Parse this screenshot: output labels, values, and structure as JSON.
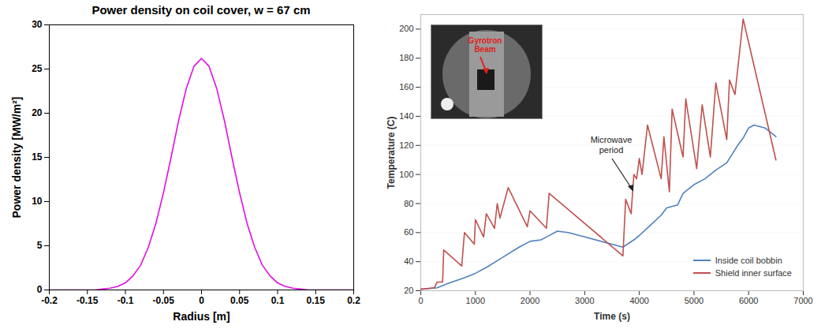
{
  "chart_data": [
    {
      "type": "line",
      "title": "Power density on coil cover, w = 67 cm",
      "xlabel": "Radius [m]",
      "ylabel": "Power density [MW/m²]",
      "x": [
        -0.2,
        -0.19,
        -0.18,
        -0.17,
        -0.16,
        -0.15,
        -0.14,
        -0.13,
        -0.12,
        -0.11,
        -0.1,
        -0.09,
        -0.08,
        -0.07,
        -0.06,
        -0.05,
        -0.04,
        -0.03,
        -0.02,
        -0.01,
        0,
        0.01,
        0.02,
        0.03,
        0.04,
        0.05,
        0.06,
        0.07,
        0.08,
        0.09,
        0.1,
        0.11,
        0.12,
        0.13,
        0.14,
        0.15,
        0.16,
        0.17,
        0.18,
        0.19,
        0.2
      ],
      "series": [
        {
          "name": "Power density",
          "color": "#e010e0",
          "values": [
            0,
            0,
            0,
            0,
            0,
            0,
            0,
            0.1,
            0.2,
            0.4,
            0.8,
            1.6,
            2.8,
            4.8,
            7.5,
            11.0,
            15.0,
            19.2,
            22.8,
            25.3,
            26.2,
            25.3,
            22.8,
            19.2,
            15.0,
            11.0,
            7.5,
            4.8,
            2.8,
            1.6,
            0.8,
            0.4,
            0.2,
            0.1,
            0,
            0,
            0,
            0,
            0,
            0,
            0
          ]
        }
      ],
      "xlim": [
        -0.2,
        0.2
      ],
      "xticks": [
        -0.2,
        -0.15,
        -0.1,
        -0.05,
        0,
        0.05,
        0.1,
        0.15,
        0.2
      ],
      "ylim": [
        0,
        30
      ],
      "yticks": [
        0,
        5,
        10,
        15,
        20,
        25,
        30
      ],
      "grid": false
    },
    {
      "type": "line",
      "xlabel": "Time (s)",
      "ylabel": "Temperature (C)",
      "annotations": [
        "Microwave period",
        "Gyrotron Beam"
      ],
      "series": [
        {
          "name": "Inside coil bobbin",
          "color": "#4f81bd",
          "x": [
            0,
            300,
            500,
            800,
            1000,
            1200,
            1500,
            1800,
            2000,
            2200,
            2300,
            2500,
            2700,
            3000,
            3700,
            3900,
            4000,
            4200,
            4400,
            4500,
            4700,
            4800,
            5000,
            5200,
            5400,
            5600,
            5700,
            5800,
            5900,
            6000,
            6100,
            6300,
            6500
          ],
          "values": [
            21,
            22,
            25,
            29,
            32,
            36,
            43,
            50,
            54,
            55,
            57,
            61,
            60,
            57,
            50,
            55,
            58,
            65,
            72,
            77,
            79,
            87,
            93,
            97,
            103,
            108,
            114,
            120,
            125,
            132,
            134,
            132,
            126
          ]
        },
        {
          "name": "Shield inner surface",
          "color": "#c0504d",
          "x": [
            0,
            250,
            300,
            400,
            420,
            750,
            800,
            980,
            1000,
            1150,
            1200,
            1350,
            1400,
            1450,
            1600,
            1950,
            2000,
            2300,
            2350,
            3700,
            3750,
            3850,
            3900,
            3950,
            4000,
            4050,
            4150,
            4400,
            4450,
            4550,
            4600,
            4800,
            4850,
            5050,
            5150,
            5300,
            5400,
            5600,
            5650,
            5750,
            5900,
            6500
          ],
          "values": [
            21,
            22,
            26,
            26,
            48,
            37,
            60,
            52,
            69,
            57,
            73,
            63,
            80,
            70,
            91,
            64,
            75,
            63,
            87,
            44,
            83,
            73,
            100,
            97,
            111,
            100,
            134,
            97,
            126,
            88,
            145,
            112,
            152,
            104,
            148,
            112,
            163,
            124,
            165,
            155,
            207,
            110
          ]
        }
      ],
      "xlim": [
        0,
        7000
      ],
      "xticks": [
        0,
        1000,
        2000,
        3000,
        4000,
        5000,
        6000,
        7000
      ],
      "ylim": [
        20,
        210
      ],
      "yticks": [
        20,
        40,
        60,
        80,
        100,
        120,
        140,
        160,
        180,
        200
      ],
      "grid": true,
      "legend": "lower right"
    }
  ]
}
